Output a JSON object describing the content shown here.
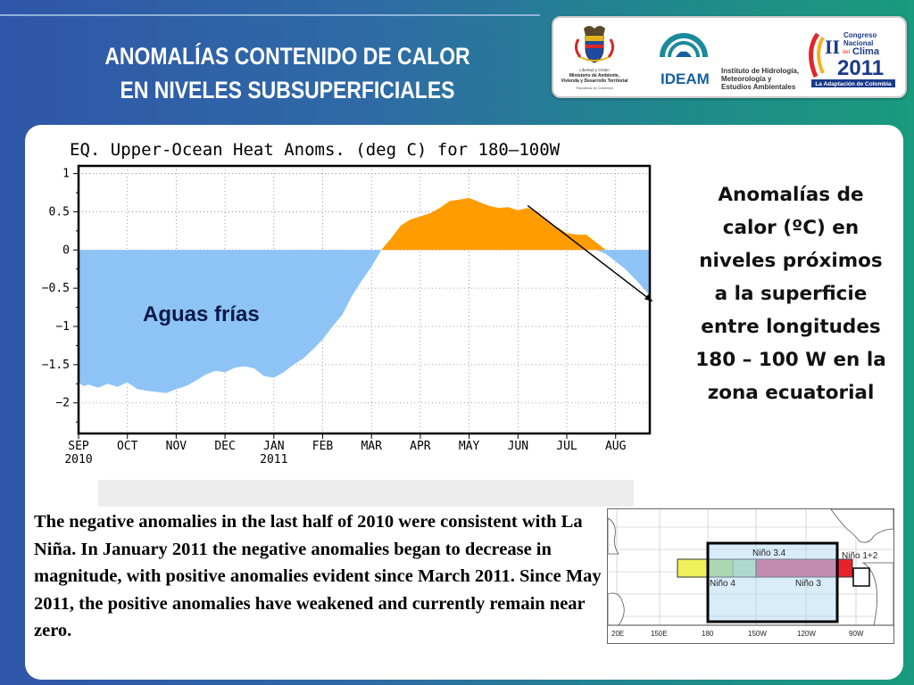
{
  "slide": {
    "title_line1": "ANOMALÍAS CONTENIDO DE CALOR",
    "title_line2": "EN NIVELES SUBSUPERFICIALES",
    "side_lines": [
      "Anomalías de",
      "calor (ºC) en",
      "niveles próximos",
      "a la superficie",
      "entre longitudes",
      "180 – 100 W en la",
      "zona ecuatorial"
    ],
    "body_text": "The negative anomalies in the last half of 2010 were consistent with La Niña.  In January 2011 the negative anomalies began to decrease in magnitude, with positive anomalies evident since March 2011.  Since May 2011, the positive anomalies have weakened and currently remain near zero."
  },
  "logos": {
    "govt_text": [
      "Libertad y Orden",
      "Ministerio de Ambiente,",
      "Vivienda y Desarrollo Territorial",
      "República de Colombia"
    ],
    "ideam_name": "IDEAM",
    "ideam_text": [
      "Instituto de Hidrología,",
      "Meteorología y",
      "Estudios Ambientales"
    ],
    "congreso_small": "Congreso",
    "congreso_nacional": "Nacional",
    "congreso_clima": "Clima",
    "congreso_year": "2011",
    "congreso_tagline": "La Adaptación de Colombia",
    "congreso_roman": "II",
    "congreso_del": "del"
  },
  "chart_data": {
    "type": "area",
    "title": "EQ. Upper-Ocean Heat Anoms. (deg C) for 180–100W",
    "annotation": "Aguas frías",
    "x_tick_labels": [
      "SEP",
      "OCT",
      "NOV",
      "DEC",
      "JAN",
      "FEB",
      "MAR",
      "APR",
      "MAY",
      "JUN",
      "JUL",
      "AUG"
    ],
    "x_sub_labels": [
      "2010",
      "",
      "",
      "",
      "2011",
      "",
      "",
      "",
      "",
      "",
      "",
      ""
    ],
    "y_tick_labels": [
      "1",
      "0.5",
      "0",
      "−0.5",
      "−1",
      "−1.5",
      "−2"
    ],
    "y_ticks": [
      1,
      0.5,
      0,
      -0.5,
      -1,
      -1.5,
      -2
    ],
    "ylim": [
      -2.4,
      1.1
    ],
    "xlim": [
      0,
      11.7
    ],
    "positive_color": "#ff9c00",
    "negative_color": "#8ec3f5",
    "trend_arrow": {
      "from": [
        9.2,
        0.58
      ],
      "to": [
        11.75,
        -0.67
      ]
    },
    "series": [
      {
        "x": [
          0,
          0.1,
          0.2,
          0.4,
          0.6,
          0.8,
          1.0,
          1.2,
          1.5,
          1.8,
          2.0,
          2.2,
          2.4,
          2.6,
          2.8,
          3.0,
          3.2,
          3.4,
          3.6,
          3.8,
          4.0,
          4.2,
          4.4,
          4.6,
          4.8,
          5.0,
          5.2,
          5.4,
          5.6,
          5.8,
          6.0,
          6.2,
          6.4,
          6.6,
          6.8,
          7.0,
          7.2,
          7.4,
          7.6,
          7.8,
          8.0,
          8.2,
          8.4,
          8.6,
          8.8,
          9.0,
          9.2,
          9.4,
          9.6,
          9.8,
          10.0,
          10.2,
          10.4,
          10.6,
          10.8,
          11.0,
          11.2,
          11.4,
          11.6,
          11.7
        ],
        "values": [
          -1.73,
          -1.78,
          -1.76,
          -1.8,
          -1.75,
          -1.79,
          -1.73,
          -1.82,
          -1.85,
          -1.87,
          -1.82,
          -1.78,
          -1.71,
          -1.63,
          -1.58,
          -1.6,
          -1.54,
          -1.52,
          -1.55,
          -1.65,
          -1.67,
          -1.6,
          -1.5,
          -1.42,
          -1.3,
          -1.17,
          -1.0,
          -0.85,
          -0.6,
          -0.4,
          -0.22,
          0.0,
          0.15,
          0.32,
          0.4,
          0.44,
          0.48,
          0.55,
          0.64,
          0.66,
          0.68,
          0.63,
          0.58,
          0.55,
          0.56,
          0.52,
          0.55,
          0.5,
          0.38,
          0.3,
          0.22,
          0.2,
          0.2,
          0.1,
          -0.05,
          -0.15,
          -0.25,
          -0.38,
          -0.52,
          -0.6
        ]
      }
    ]
  },
  "map": {
    "region_labels": [
      "Niño 3.4",
      "Niño 4",
      "Niño 3",
      "Niño 1+2"
    ],
    "lon_labels": [
      "20E",
      "150E",
      "180",
      "150W",
      "120W",
      "90W"
    ]
  }
}
